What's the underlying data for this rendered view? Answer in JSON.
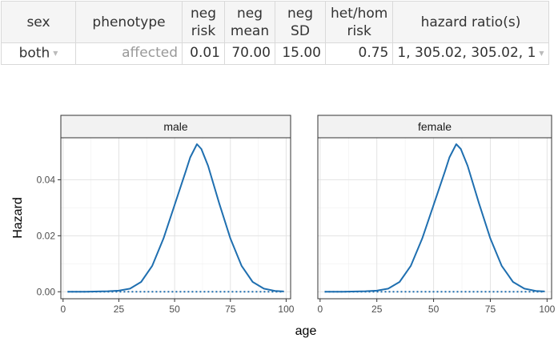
{
  "table": {
    "headers": {
      "sex": "sex",
      "phenotype": "phenotype",
      "neg_risk": [
        "neg",
        "risk"
      ],
      "neg_mean": [
        "neg",
        "mean"
      ],
      "neg_sd": [
        "neg",
        "SD"
      ],
      "hethom_risk": [
        "het/hom",
        "risk"
      ],
      "hazard_ratios": "hazard ratio(s)"
    },
    "row": {
      "sex": "both",
      "phenotype": "affected",
      "neg_risk": "0.01",
      "neg_mean": "70.00",
      "neg_sd": "15.00",
      "hethom_risk": "0.75",
      "hazard_ratios": "1, 305.02, 305.02, 1"
    },
    "dropdown_icon": "caret-down-icon"
  },
  "chart_data": {
    "type": "line",
    "ylabel": "Hazard",
    "xlabel": "age",
    "xlim": [
      -1,
      102
    ],
    "ylim": [
      -0.0025,
      0.055
    ],
    "xticks": [
      0,
      25,
      50,
      75,
      100
    ],
    "yticks": [
      0.0,
      0.02,
      0.04
    ],
    "ytick_labels": [
      "0.00",
      "0.02",
      "0.04"
    ],
    "grid": true,
    "line_color": "#1f6fb0",
    "panels": [
      {
        "name": "male",
        "series": [
          {
            "style": "solid",
            "x": [
              2,
              10,
              20,
              25,
              30,
              35,
              40,
              45,
              50,
              55,
              57,
              60,
              62,
              65,
              70,
              75,
              80,
              85,
              90,
              95,
              99
            ],
            "y": [
              0.0,
              0.0,
              0.0002,
              0.0004,
              0.0011,
              0.0035,
              0.0093,
              0.019,
              0.031,
              0.043,
              0.048,
              0.0527,
              0.051,
              0.045,
              0.0316,
              0.019,
              0.0093,
              0.0035,
              0.0011,
              0.0003,
              0.0001
            ]
          },
          {
            "style": "dotted",
            "x": [
              2,
              99
            ],
            "y": [
              0.0,
              0.0
            ]
          }
        ]
      },
      {
        "name": "female",
        "series": [
          {
            "style": "solid",
            "x": [
              2,
              10,
              20,
              25,
              30,
              35,
              40,
              45,
              50,
              55,
              57,
              60,
              62,
              65,
              70,
              75,
              80,
              85,
              90,
              95,
              99
            ],
            "y": [
              0.0,
              0.0,
              0.0002,
              0.0004,
              0.0011,
              0.0035,
              0.0093,
              0.019,
              0.031,
              0.043,
              0.048,
              0.0527,
              0.051,
              0.045,
              0.0316,
              0.019,
              0.0093,
              0.0035,
              0.0011,
              0.0003,
              0.0001
            ]
          },
          {
            "style": "dotted",
            "x": [
              2,
              99
            ],
            "y": [
              0.0,
              0.0
            ]
          }
        ]
      }
    ]
  }
}
